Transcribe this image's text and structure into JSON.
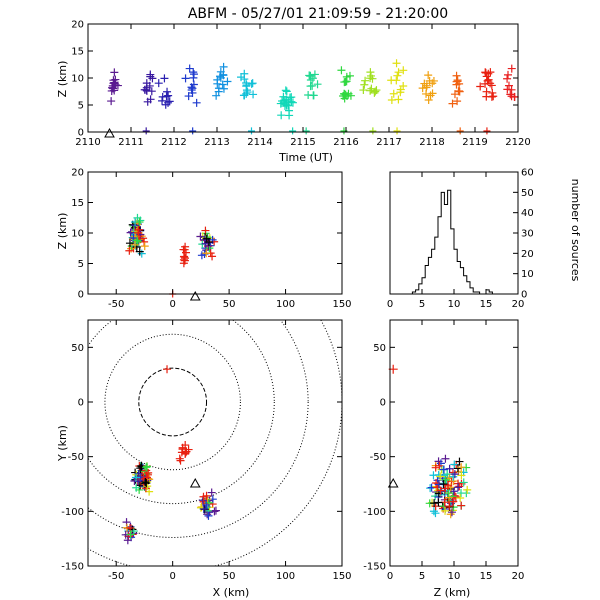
{
  "title": "ABFM - 05/27/01 21:09:59 - 21:20:00",
  "chart_data": [
    {
      "id": "time-height",
      "type": "scatter",
      "xlabel": "Time (UT)",
      "ylabel": "Z (km)",
      "xlim": [
        2110,
        2120
      ],
      "ylim": [
        0,
        20
      ],
      "x_ticks": [
        2110,
        2111,
        2112,
        2113,
        2114,
        2115,
        2116,
        2117,
        2118,
        2119,
        2120
      ],
      "y_ticks": [
        0,
        5,
        10,
        15,
        20
      ],
      "color_scale": "rainbow by time",
      "marker": "plus",
      "station_marker": {
        "x": 2110.5,
        "y": 0,
        "symbol": "triangle"
      },
      "clusters": [
        {
          "x": 2110.6,
          "z": 8.5,
          "count": 14,
          "color": "#5a1a90"
        },
        {
          "x": 2111.4,
          "z": 8.0,
          "count": 12,
          "color": "#3a1aa0"
        },
        {
          "x": 2111.8,
          "z": 7.0,
          "count": 10,
          "color": "#2a20b0"
        },
        {
          "x": 2112.4,
          "z": 8.5,
          "count": 12,
          "color": "#1e3acd"
        },
        {
          "x": 2113.1,
          "z": 9.5,
          "count": 14,
          "color": "#1090e0"
        },
        {
          "x": 2113.7,
          "z": 8.5,
          "count": 14,
          "color": "#10c0d8"
        },
        {
          "x": 2114.6,
          "z": 6.0,
          "count": 20,
          "color": "#10d8b8"
        },
        {
          "x": 2115.2,
          "z": 8.0,
          "count": 12,
          "color": "#20d890"
        },
        {
          "x": 2116.0,
          "z": 8.5,
          "count": 14,
          "color": "#30d840"
        },
        {
          "x": 2116.6,
          "z": 9.0,
          "count": 12,
          "color": "#a0e020"
        },
        {
          "x": 2117.2,
          "z": 9.0,
          "count": 12,
          "color": "#e0e010"
        },
        {
          "x": 2117.9,
          "z": 8.5,
          "count": 12,
          "color": "#f0a010"
        },
        {
          "x": 2118.6,
          "z": 8.0,
          "count": 12,
          "color": "#f06010"
        },
        {
          "x": 2119.3,
          "z": 9.0,
          "count": 16,
          "color": "#e82010"
        },
        {
          "x": 2119.8,
          "z": 9.0,
          "count": 10,
          "color": "#e82020"
        }
      ]
    },
    {
      "id": "x-height",
      "type": "scatter",
      "ylabel": "Z (km)",
      "xlim": [
        -75,
        150
      ],
      "ylim": [
        0,
        20
      ],
      "x_ticks": [
        -50,
        0,
        50,
        100,
        150
      ],
      "y_ticks": [
        0,
        5,
        10,
        15,
        20
      ],
      "marker": "plus",
      "station_marker": {
        "x": 20,
        "y": -1.3,
        "symbol": "triangle"
      },
      "clusters": [
        {
          "x": -32,
          "z": 9.5,
          "count": 70,
          "color": "mixed"
        },
        {
          "x": 10,
          "z": 7.0,
          "count": 10,
          "color": "#e82010"
        },
        {
          "x": 30,
          "z": 8.5,
          "count": 30,
          "color": "mixed"
        }
      ]
    },
    {
      "id": "height-histogram",
      "type": "bar",
      "ylabel": "number of sources",
      "xlim": [
        0,
        20
      ],
      "ylim": [
        0,
        60
      ],
      "x_ticks": [
        0,
        5,
        10,
        15,
        20
      ],
      "y_ticks": [
        0,
        10,
        20,
        30,
        40,
        50,
        60
      ],
      "bin_width": 0.5,
      "bin_start": 0,
      "values": [
        0,
        0,
        0,
        0,
        0,
        0,
        0,
        1,
        2,
        5,
        8,
        14,
        18,
        22,
        28,
        38,
        50,
        44,
        51,
        32,
        22,
        16,
        13,
        9,
        6,
        3,
        1,
        1,
        0,
        0,
        2,
        1,
        0,
        0,
        0,
        0,
        0,
        0,
        0,
        0
      ]
    },
    {
      "id": "plan-view",
      "type": "scatter",
      "xlabel": "X (km)",
      "ylabel": "Y (km)",
      "xlim": [
        -75,
        150
      ],
      "ylim": [
        -150,
        75
      ],
      "x_ticks": [
        -50,
        0,
        50,
        100,
        150
      ],
      "y_ticks": [
        -150,
        -100,
        -50,
        0,
        50
      ],
      "range_rings_km": [
        30,
        60,
        90,
        120,
        150
      ],
      "range_ring_center": [
        0,
        0
      ],
      "marker": "plus",
      "station_markers": [
        {
          "x": 20,
          "y": -75,
          "symbol": "triangle"
        }
      ],
      "clusters": [
        {
          "x": -28,
          "y": -68,
          "count": 70,
          "color": "mixed"
        },
        {
          "x": 10,
          "y": -46,
          "count": 10,
          "color": "#e82010"
        },
        {
          "x": 30,
          "y": -96,
          "count": 30,
          "color": "mixed"
        },
        {
          "x": -38,
          "y": -120,
          "count": 16,
          "color": "mixed"
        }
      ],
      "isolated": [
        {
          "x": -5,
          "y": 30,
          "color": "#e82010"
        }
      ]
    },
    {
      "id": "height-y",
      "type": "scatter",
      "xlabel": "Z (km)",
      "xlim": [
        0,
        20
      ],
      "ylim": [
        -150,
        75
      ],
      "x_ticks": [
        0,
        5,
        10,
        15,
        20
      ],
      "y_ticks": [
        -150,
        -100,
        -50,
        0,
        50
      ],
      "marker": "plus",
      "station_marker": {
        "x": 0.5,
        "y": -75,
        "symbol": "triangle"
      },
      "isolated": [
        {
          "x": 0.5,
          "y": 30,
          "color": "#e82010"
        }
      ],
      "clusters": [
        {
          "z": 9,
          "y": -80,
          "count": 110,
          "color": "mixed"
        }
      ]
    }
  ]
}
